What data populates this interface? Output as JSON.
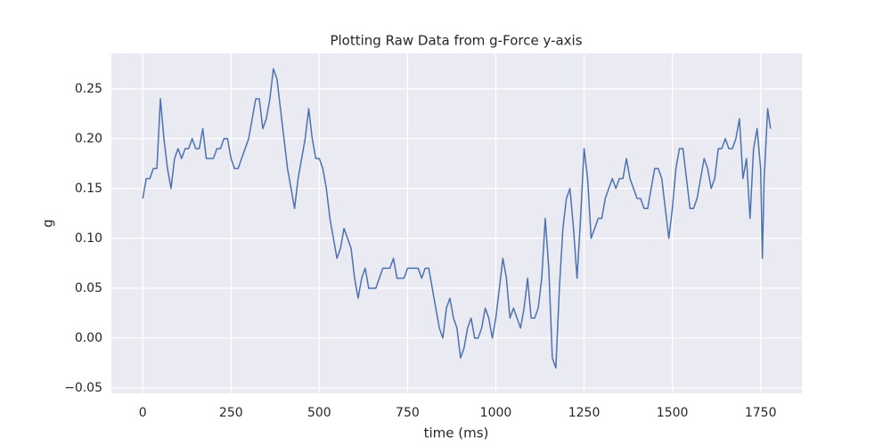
{
  "chart_data": {
    "type": "line",
    "title": "Plotting Raw Data from g-Force y-axis",
    "x_label": "time (ms)",
    "y_label": "g",
    "color": "#4c72b0",
    "grid": true,
    "x": [
      0,
      10,
      20,
      30,
      40,
      50,
      60,
      70,
      80,
      90,
      100,
      110,
      120,
      130,
      140,
      150,
      160,
      170,
      180,
      190,
      200,
      210,
      220,
      230,
      240,
      250,
      260,
      270,
      280,
      290,
      300,
      310,
      320,
      330,
      340,
      350,
      360,
      370,
      380,
      390,
      400,
      410,
      420,
      430,
      440,
      450,
      460,
      470,
      480,
      490,
      500,
      510,
      520,
      530,
      540,
      550,
      560,
      570,
      580,
      590,
      600,
      610,
      620,
      630,
      640,
      650,
      660,
      670,
      680,
      690,
      700,
      710,
      720,
      730,
      740,
      750,
      760,
      770,
      780,
      790,
      800,
      810,
      820,
      830,
      840,
      850,
      860,
      870,
      880,
      890,
      900,
      910,
      920,
      930,
      940,
      950,
      960,
      970,
      980,
      990,
      1000,
      1010,
      1020,
      1030,
      1040,
      1050,
      1060,
      1070,
      1080,
      1090,
      1100,
      1110,
      1120,
      1130,
      1140,
      1150,
      1160,
      1170,
      1180,
      1190,
      1200,
      1210,
      1220,
      1230,
      1240,
      1250,
      1260,
      1270,
      1280,
      1290,
      1300,
      1310,
      1320,
      1330,
      1340,
      1350,
      1360,
      1370,
      1380,
      1390,
      1400,
      1410,
      1420,
      1430,
      1440,
      1450,
      1460,
      1470,
      1480,
      1490,
      1500,
      1510,
      1520,
      1530,
      1540,
      1550,
      1560,
      1570,
      1580,
      1590,
      1600,
      1610,
      1620,
      1630,
      1640,
      1650,
      1660,
      1670,
      1680,
      1690,
      1700,
      1710,
      1720,
      1730,
      1740,
      1750,
      1755,
      1760,
      1770,
      1778
    ],
    "values": [
      0.14,
      0.16,
      0.16,
      0.17,
      0.17,
      0.24,
      0.2,
      0.17,
      0.15,
      0.18,
      0.19,
      0.18,
      0.19,
      0.19,
      0.2,
      0.19,
      0.19,
      0.21,
      0.18,
      0.18,
      0.18,
      0.19,
      0.19,
      0.2,
      0.2,
      0.18,
      0.17,
      0.17,
      0.18,
      0.19,
      0.2,
      0.22,
      0.24,
      0.24,
      0.21,
      0.22,
      0.24,
      0.27,
      0.26,
      0.23,
      0.2,
      0.17,
      0.15,
      0.13,
      0.16,
      0.18,
      0.2,
      0.23,
      0.2,
      0.18,
      0.18,
      0.17,
      0.15,
      0.12,
      0.1,
      0.08,
      0.09,
      0.11,
      0.1,
      0.09,
      0.06,
      0.04,
      0.06,
      0.07,
      0.05,
      0.05,
      0.05,
      0.06,
      0.07,
      0.07,
      0.07,
      0.08,
      0.06,
      0.06,
      0.06,
      0.07,
      0.07,
      0.07,
      0.07,
      0.06,
      0.07,
      0.07,
      0.05,
      0.03,
      0.01,
      0.0,
      0.03,
      0.04,
      0.02,
      0.01,
      -0.02,
      -0.01,
      0.01,
      0.02,
      0.0,
      0.0,
      0.01,
      0.03,
      0.02,
      0.0,
      0.02,
      0.05,
      0.08,
      0.06,
      0.02,
      0.03,
      0.02,
      0.01,
      0.03,
      0.06,
      0.02,
      0.02,
      0.03,
      0.06,
      0.12,
      0.07,
      -0.02,
      -0.03,
      0.05,
      0.11,
      0.14,
      0.15,
      0.11,
      0.06,
      0.12,
      0.19,
      0.16,
      0.1,
      0.11,
      0.12,
      0.12,
      0.14,
      0.15,
      0.16,
      0.15,
      0.16,
      0.16,
      0.18,
      0.16,
      0.15,
      0.14,
      0.14,
      0.13,
      0.13,
      0.15,
      0.17,
      0.17,
      0.16,
      0.13,
      0.1,
      0.13,
      0.17,
      0.19,
      0.19,
      0.16,
      0.13,
      0.13,
      0.14,
      0.16,
      0.18,
      0.17,
      0.15,
      0.16,
      0.19,
      0.19,
      0.2,
      0.19,
      0.19,
      0.2,
      0.22,
      0.16,
      0.18,
      0.12,
      0.19,
      0.21,
      0.17,
      0.08,
      0.16,
      0.23,
      0.21
    ],
    "xlim": [
      -88.9,
      1866.9
    ],
    "xticks": [
      0,
      250,
      500,
      750,
      1000,
      1250,
      1500,
      1750
    ],
    "ylim": [
      -0.0555,
      0.2855
    ],
    "yticks": [
      {
        "value": -0.05,
        "label": "−0.05"
      },
      {
        "value": 0,
        "label": "0.00"
      },
      {
        "value": 0.05,
        "label": "0.05"
      },
      {
        "value": 0.1,
        "label": "0.10"
      },
      {
        "value": 0.15,
        "label": "0.15"
      },
      {
        "value": 0.2,
        "label": "0.20"
      },
      {
        "value": 0.25,
        "label": "0.25"
      }
    ]
  }
}
